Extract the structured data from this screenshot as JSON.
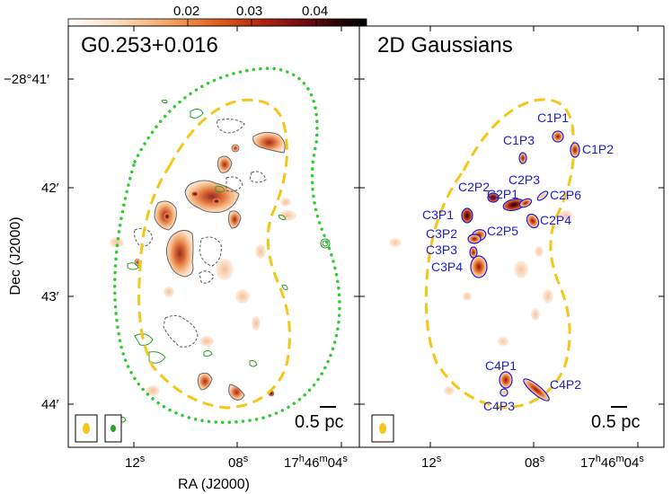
{
  "chart_data": {
    "type": "image",
    "colorbar": {
      "ticks": [
        "0.02",
        "0.03",
        "0.04"
      ],
      "colors": [
        "#ffffff",
        "#fbd9b8",
        "#f4a05c",
        "#e0601f",
        "#b22412",
        "#6e0b10",
        "#1a0305",
        "#000000"
      ]
    },
    "y_axis": {
      "title": "Dec (J2000)",
      "ticks": [
        {
          "label": "−28°41′",
          "dec": -28.6833
        },
        {
          "label": "42′",
          "dec": -28.7
        },
        {
          "label": "43′",
          "dec": -28.7167
        },
        {
          "label": "44′",
          "dec": -28.7333
        }
      ]
    },
    "x_axis": {
      "title": "RA (J2000)",
      "ticks": [
        {
          "label": "12",
          "sup": "s"
        },
        {
          "label": "08",
          "sup": "s"
        },
        {
          "label": "17",
          "sup_h": "h",
          "mid": "46",
          "sup_m": "m",
          "end": "04",
          "sup_s": "s"
        }
      ]
    },
    "panels": [
      {
        "title": "G0.253+0.016",
        "scale_bar": "0.5 pc"
      },
      {
        "title": "2D Gaussians",
        "scale_bar": "0.5 pc"
      }
    ],
    "components": [
      "C1P1",
      "C1P2",
      "C1P3",
      "C2P1",
      "C2P2",
      "C2P3",
      "C2P4",
      "C2P5",
      "C2P6",
      "C3P1",
      "C3P2",
      "C3P3",
      "C3P4",
      "C4P1",
      "C4P2",
      "C4P3"
    ],
    "colors": {
      "dotted_contour": "#2ecc2e",
      "dashed_contour": "#f5c518",
      "component_ellipse": "#1c1cd6",
      "green_contour": "#2ca02c"
    }
  }
}
